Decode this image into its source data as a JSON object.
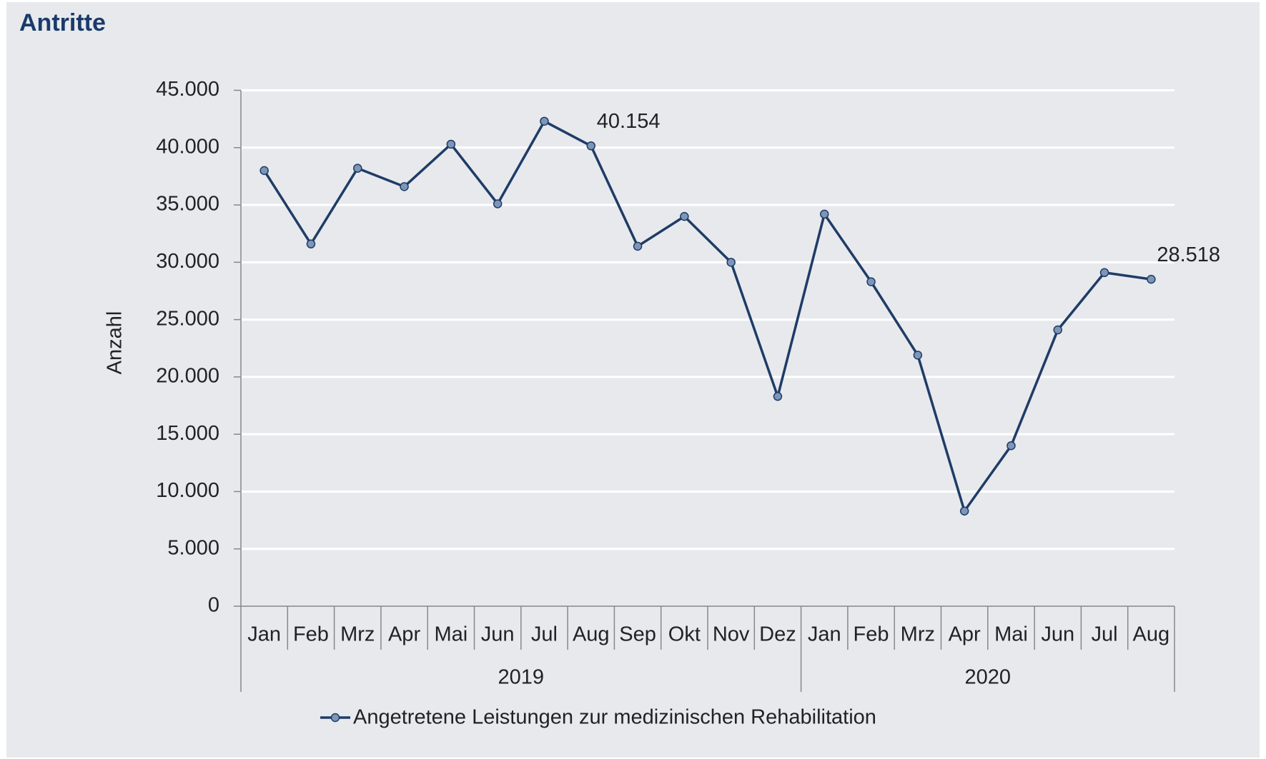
{
  "chart_data": {
    "type": "line",
    "title": "Antritte",
    "ylabel": "Anzahl",
    "groups": [
      {
        "label": "2019",
        "categories": [
          "Jan",
          "Feb",
          "Mrz",
          "Apr",
          "Mai",
          "Jun",
          "Jul",
          "Aug",
          "Sep",
          "Okt",
          "Nov",
          "Dez"
        ]
      },
      {
        "label": "2020",
        "categories": [
          "Jan",
          "Feb",
          "Mrz",
          "Apr",
          "Mai",
          "Jun",
          "Jul",
          "Aug"
        ]
      }
    ],
    "series": [
      {
        "name": "Angetretene Leistungen zur medizinischen Rehabilitation",
        "color": "#1f3c66",
        "values": [
          38000,
          31600,
          38200,
          36600,
          40300,
          35100,
          42300,
          40154,
          31400,
          34000,
          30000,
          18300,
          34200,
          28300,
          21900,
          8300,
          14000,
          24100,
          29100,
          28518
        ],
        "value_labels": [
          null,
          null,
          null,
          null,
          null,
          null,
          null,
          "40.154",
          null,
          null,
          null,
          null,
          null,
          null,
          null,
          null,
          null,
          null,
          null,
          "28.518"
        ]
      }
    ],
    "ylim": [
      0,
      45000
    ],
    "yticks": [
      0,
      {
        "value": 5000,
        "label": "5.000"
      },
      {
        "value": 10000,
        "label": "10.000"
      },
      {
        "value": 15000,
        "label": "15.000"
      },
      {
        "value": 20000,
        "label": "20.000"
      },
      {
        "value": 25000,
        "label": "25.000"
      },
      {
        "value": 30000,
        "label": "30.000"
      },
      {
        "value": 35000,
        "label": "35.000"
      },
      {
        "value": 40000,
        "label": "40.000"
      },
      {
        "value": 45000,
        "label": "45.000"
      }
    ],
    "grid": true
  }
}
